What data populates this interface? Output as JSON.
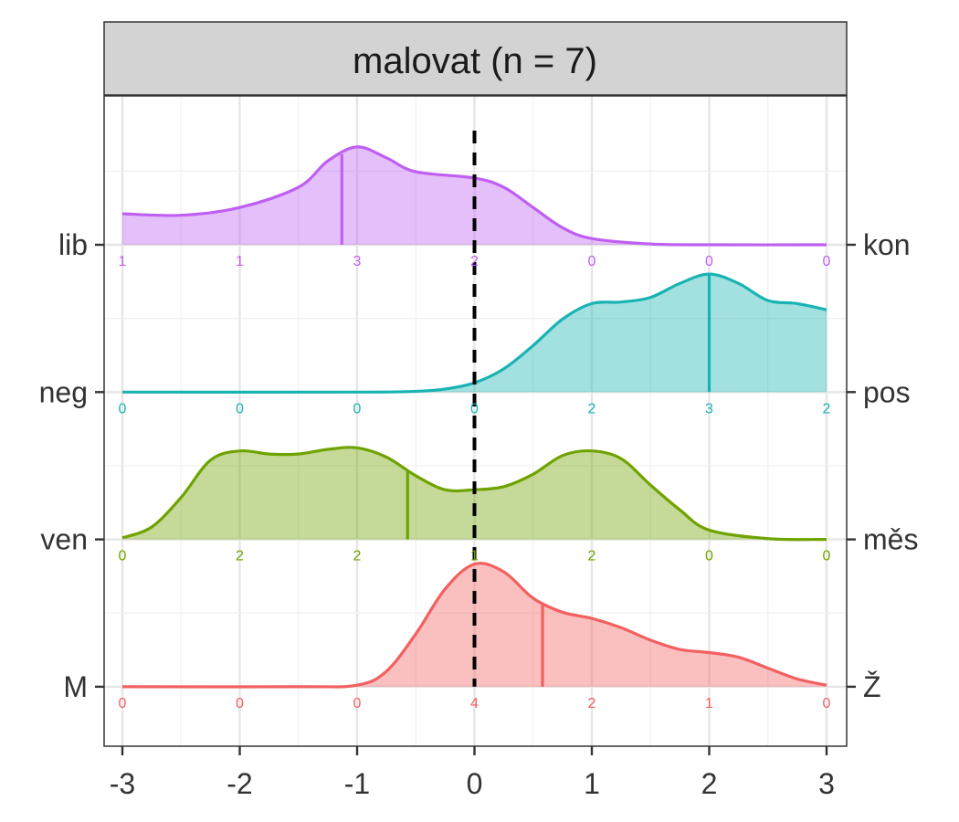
{
  "chart_data": {
    "type": "ridgeline",
    "title": "malovat (n = 7)",
    "xlim": [
      -3,
      3
    ],
    "x_ticks": [
      "-3",
      "-2",
      "-1",
      "0",
      "1",
      "2",
      "3"
    ],
    "reference_line_x": 0,
    "grid": true,
    "series": [
      {
        "left_label": "lib",
        "right_label": "kon",
        "color": "#bf5ff2",
        "median": -1.13,
        "counts": [
          "1",
          "1",
          "3",
          "2",
          "0",
          "0",
          "0"
        ],
        "density": [
          [
            -3,
            0.2
          ],
          [
            -2.5,
            0.19
          ],
          [
            -2,
            0.24
          ],
          [
            -1.5,
            0.37
          ],
          [
            -1.25,
            0.54
          ],
          [
            -1,
            0.63
          ],
          [
            -0.75,
            0.56
          ],
          [
            -0.5,
            0.47
          ],
          [
            0,
            0.43
          ],
          [
            0.25,
            0.37
          ],
          [
            0.5,
            0.24
          ],
          [
            0.75,
            0.11
          ],
          [
            1,
            0.04
          ],
          [
            1.5,
            0.005
          ],
          [
            2,
            0
          ],
          [
            3,
            0
          ]
        ]
      },
      {
        "left_label": "neg",
        "right_label": "pos",
        "color": "#19b3b3",
        "median": 2,
        "counts": [
          "0",
          "0",
          "0",
          "0",
          "2",
          "3",
          "2"
        ],
        "density": [
          [
            -3,
            0
          ],
          [
            -1,
            0
          ],
          [
            -0.5,
            0.005
          ],
          [
            -0.25,
            0.02
          ],
          [
            0,
            0.06
          ],
          [
            0.25,
            0.15
          ],
          [
            0.5,
            0.3
          ],
          [
            0.75,
            0.47
          ],
          [
            1,
            0.57
          ],
          [
            1.25,
            0.58
          ],
          [
            1.5,
            0.61
          ],
          [
            1.75,
            0.7
          ],
          [
            2,
            0.76
          ],
          [
            2.25,
            0.7
          ],
          [
            2.5,
            0.59
          ],
          [
            2.75,
            0.57
          ],
          [
            3,
            0.53
          ]
        ]
      },
      {
        "left_label": "ven",
        "right_label": "měs",
        "color": "#6fa300",
        "median": -0.57,
        "counts": [
          "0",
          "2",
          "2",
          "1",
          "2",
          "0",
          "0"
        ],
        "density": [
          [
            -3,
            0.01
          ],
          [
            -2.75,
            0.08
          ],
          [
            -2.5,
            0.27
          ],
          [
            -2.25,
            0.51
          ],
          [
            -2,
            0.57
          ],
          [
            -1.75,
            0.55
          ],
          [
            -1.5,
            0.55
          ],
          [
            -1.25,
            0.58
          ],
          [
            -1,
            0.59
          ],
          [
            -0.75,
            0.53
          ],
          [
            -0.5,
            0.41
          ],
          [
            -0.25,
            0.32
          ],
          [
            0,
            0.32
          ],
          [
            0.25,
            0.34
          ],
          [
            0.5,
            0.42
          ],
          [
            0.75,
            0.54
          ],
          [
            1,
            0.57
          ],
          [
            1.25,
            0.52
          ],
          [
            1.5,
            0.35
          ],
          [
            1.75,
            0.19
          ],
          [
            2,
            0.06
          ],
          [
            2.5,
            0.005
          ],
          [
            3,
            0
          ]
        ]
      },
      {
        "left_label": "M",
        "right_label": "Ž",
        "color": "#f26060",
        "median": 0.58,
        "counts": [
          "0",
          "0",
          "0",
          "4",
          "2",
          "1",
          "0"
        ],
        "density": [
          [
            -3,
            0
          ],
          [
            -1.5,
            0
          ],
          [
            -1,
            0.01
          ],
          [
            -0.75,
            0.1
          ],
          [
            -0.5,
            0.34
          ],
          [
            -0.25,
            0.63
          ],
          [
            0,
            0.79
          ],
          [
            0.25,
            0.74
          ],
          [
            0.5,
            0.57
          ],
          [
            0.75,
            0.48
          ],
          [
            1,
            0.44
          ],
          [
            1.25,
            0.38
          ],
          [
            1.5,
            0.3
          ],
          [
            1.75,
            0.24
          ],
          [
            2,
            0.22
          ],
          [
            2.25,
            0.19
          ],
          [
            2.5,
            0.12
          ],
          [
            2.75,
            0.05
          ],
          [
            3,
            0.01
          ]
        ]
      }
    ]
  }
}
